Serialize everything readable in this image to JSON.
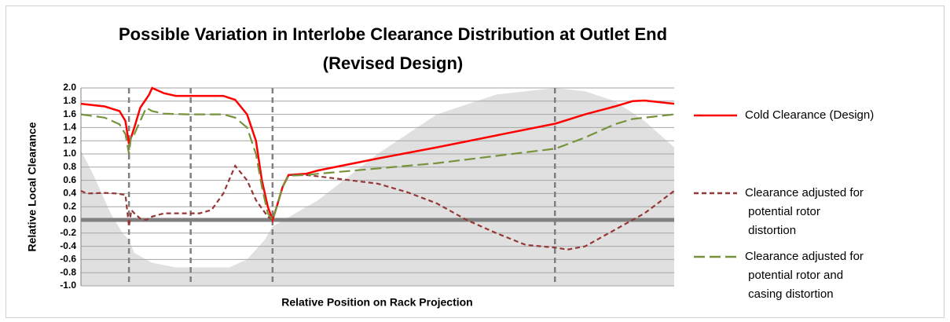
{
  "chart_data": {
    "type": "line",
    "title": [
      "Possible Variation in Interlobe Clearance Distribution at Outlet End",
      "(Revised Design)"
    ],
    "xlabel": "Relative Position on Rack Projection",
    "ylabel": "Relative Local Clearance",
    "xlim": [
      0,
      100
    ],
    "ylim": [
      -1.0,
      2.0
    ],
    "yticks": [
      {
        "value": 2.0,
        "label": "2.0"
      },
      {
        "value": 1.8,
        "label": "1.8"
      },
      {
        "value": 1.6,
        "label": "1.6"
      },
      {
        "value": 1.4,
        "label": "1.4"
      },
      {
        "value": 1.2,
        "label": "1.2"
      },
      {
        "value": 1.0,
        "label": "1.0"
      },
      {
        "value": 0.8,
        "label": "0.8"
      },
      {
        "value": 0.6,
        "label": "0.6"
      },
      {
        "value": 0.4,
        "label": "0.4"
      },
      {
        "value": 0.2,
        "label": "0.2"
      },
      {
        "value": 0.0,
        "label": "0.0"
      },
      {
        "value": -0.2,
        "label": "-0.2"
      },
      {
        "value": -0.4,
        "label": "-0.4"
      },
      {
        "value": -0.6,
        "label": "-0.6"
      },
      {
        "value": -0.8,
        "label": "-0.8"
      },
      {
        "value": -1.0,
        "label": "-1.0"
      }
    ],
    "grid": true,
    "vlines": [
      8.1,
      18.5,
      32.3,
      79.9
    ],
    "area": {
      "color": "#e0e0e0",
      "x": [
        0,
        2,
        5,
        7,
        8.1,
        9,
        12,
        16,
        25,
        28,
        31,
        32.3,
        40,
        50,
        60,
        70,
        80,
        85,
        90,
        95,
        100
      ],
      "values": [
        1.05,
        0.7,
        0.1,
        -0.2,
        -0.3,
        -0.5,
        -0.65,
        -0.72,
        -0.72,
        -0.6,
        -0.3,
        -0.1,
        0.3,
        1.0,
        1.6,
        1.9,
        2.0,
        1.95,
        1.8,
        1.5,
        1.1
      ]
    },
    "legend": "right",
    "series": [
      {
        "name": "Cold Clearance (Design)",
        "color": "#ff0000",
        "dash": "solid",
        "x": [
          0,
          4,
          6.5,
          7.5,
          8.1,
          9,
          10,
          11.5,
          12,
          14,
          16,
          20,
          24,
          26,
          28,
          29.5,
          30.5,
          31.5,
          32.3,
          33,
          34,
          35,
          38,
          40,
          50,
          60,
          70,
          80,
          85,
          90,
          93,
          95,
          98,
          100
        ],
        "values": [
          1.76,
          1.72,
          1.65,
          1.5,
          1.15,
          1.4,
          1.7,
          1.9,
          2.0,
          1.92,
          1.88,
          1.88,
          1.88,
          1.82,
          1.6,
          1.2,
          0.6,
          0.2,
          0.0,
          0.2,
          0.5,
          0.68,
          0.7,
          0.75,
          0.93,
          1.1,
          1.28,
          1.46,
          1.6,
          1.72,
          1.8,
          1.81,
          1.78,
          1.76
        ]
      },
      {
        "name": "Clearance adjusted for potential rotor distortion",
        "color": "#953735",
        "dash": "short",
        "x": [
          0,
          1,
          4,
          6,
          7.5,
          8.1,
          8.5,
          9,
          10,
          11,
          12,
          14,
          16,
          20,
          22,
          24,
          26,
          28,
          29.5,
          31.5,
          32.3,
          33,
          34,
          35,
          38,
          40,
          50,
          55,
          60,
          65,
          70,
          75,
          80,
          82,
          85,
          90,
          95,
          100
        ],
        "values": [
          0.44,
          0.4,
          0.41,
          0.4,
          0.38,
          -0.1,
          0.15,
          0.1,
          0.02,
          0.0,
          0.05,
          0.1,
          0.1,
          0.1,
          0.15,
          0.4,
          0.82,
          0.6,
          0.3,
          0.05,
          0.0,
          0.2,
          0.5,
          0.68,
          0.68,
          0.66,
          0.55,
          0.42,
          0.25,
          0.0,
          -0.2,
          -0.38,
          -0.42,
          -0.45,
          -0.4,
          -0.15,
          0.1,
          0.44
        ]
      },
      {
        "name": "Clearance adjusted for potential rotor and casing distortion",
        "color": "#77933c",
        "dash": "long",
        "x": [
          0,
          4,
          6.5,
          7.5,
          8.1,
          8.5,
          9,
          10,
          11,
          12,
          14,
          18,
          24,
          26,
          28,
          29.5,
          30.5,
          31.5,
          32.3,
          33,
          34,
          35,
          38,
          40,
          50,
          60,
          70,
          80,
          85,
          90,
          93,
          100
        ],
        "values": [
          1.6,
          1.55,
          1.45,
          1.3,
          1.0,
          1.3,
          1.3,
          1.5,
          1.7,
          1.65,
          1.61,
          1.6,
          1.6,
          1.55,
          1.4,
          1.0,
          0.5,
          0.1,
          0.0,
          0.2,
          0.5,
          0.67,
          0.68,
          0.7,
          0.78,
          0.86,
          0.97,
          1.08,
          1.25,
          1.45,
          1.53,
          1.6
        ]
      }
    ]
  }
}
